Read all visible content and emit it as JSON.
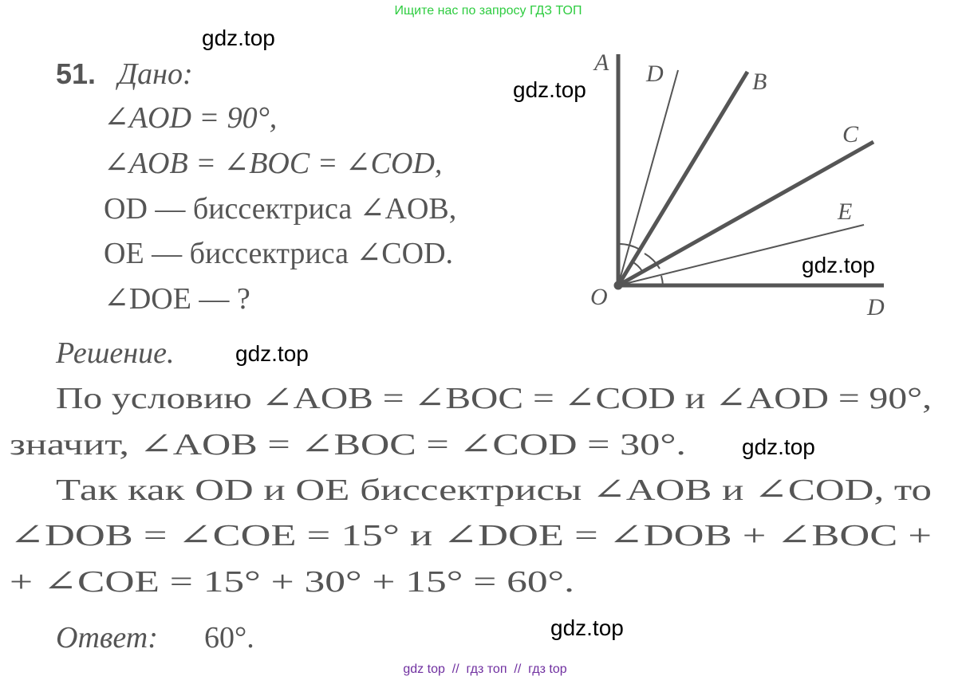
{
  "header": {
    "banner": "Ищите нас по запросу ГДЗ ТОП"
  },
  "watermarks": [
    "gdz.top",
    "gdz.top",
    "gdz.top",
    "gdz.top",
    "gdz.top",
    "gdz.top"
  ],
  "problem": {
    "number": "51.",
    "given_title": "Дано:",
    "given": [
      "∠AOD = 90°,",
      "∠AOB = ∠BOC = ∠COD,",
      "OD — биссектриса ∠AOB,",
      "OE — биссектриса ∠COD.",
      "∠DOE — ?"
    ]
  },
  "diagram": {
    "labels": [
      "A",
      "D",
      "B",
      "C",
      "E",
      "O",
      "D"
    ]
  },
  "solution": {
    "title": "Решение.",
    "lines": [
      "По условию ∠AOB = ∠BOC = ∠COD и ∠AOD = 90°,",
      "значит, ∠AOB = ∠BOC = ∠COD = 30°.",
      "Так как OD и OE биссектрисы ∠AOB и ∠COD, то",
      "∠DOB = ∠COE = 15° и ∠DOE = ∠DOB + ∠BOC +",
      "+ ∠COE = 15° + 30° + 15° = 60°."
    ],
    "answer_label": "Ответ:",
    "answer": "60°."
  },
  "footer": {
    "text": "gdz top  //  гдз топ  //  гдз top"
  }
}
